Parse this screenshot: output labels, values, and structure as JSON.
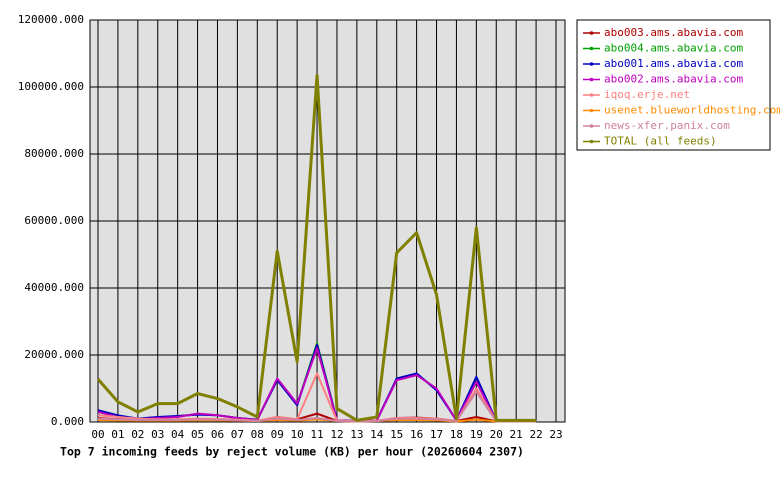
{
  "chart_data": {
    "type": "line",
    "title": "Top 7 incoming feeds by reject volume (KB) per hour (20260604 2307)",
    "categories": [
      "00",
      "01",
      "02",
      "03",
      "04",
      "05",
      "06",
      "07",
      "08",
      "09",
      "10",
      "11",
      "12",
      "13",
      "14",
      "15",
      "16",
      "17",
      "18",
      "19",
      "20",
      "21",
      "22",
      "23"
    ],
    "ylim": [
      0,
      120000
    ],
    "yticks": [
      {
        "value": 0,
        "label": "0.000"
      },
      {
        "value": 20000,
        "label": "20000.000"
      },
      {
        "value": 40000,
        "label": "40000.000"
      },
      {
        "value": 60000,
        "label": "60000.000"
      },
      {
        "value": 80000,
        "label": "80000.000"
      },
      {
        "value": 100000,
        "label": "100000.000"
      },
      {
        "value": 120000,
        "label": "120000.000"
      }
    ],
    "grid": true,
    "legend": "outside-right",
    "series": [
      {
        "name": "abo003.ams.abavia.com",
        "color": "#b00000",
        "values": [
          1200,
          800,
          500,
          600,
          700,
          900,
          800,
          500,
          300,
          1500,
          800,
          2500,
          300,
          200,
          300,
          1200,
          1300,
          1000,
          300,
          1500,
          200,
          200,
          200,
          null
        ]
      },
      {
        "name": "abo004.ams.abavia.com",
        "color": "#00a000",
        "values": [
          3300,
          1800,
          900,
          1400,
          1700,
          2300,
          2000,
          1200,
          700,
          12800,
          5200,
          23500,
          500,
          300,
          500,
          12800,
          14300,
          9800,
          500,
          13200,
          300,
          300,
          300,
          null
        ]
      },
      {
        "name": "abo001.ams.abavia.com",
        "color": "#0000c0",
        "values": [
          3500,
          2000,
          1000,
          1500,
          1800,
          2200,
          2000,
          1200,
          700,
          12500,
          5000,
          23000,
          500,
          300,
          500,
          13000,
          14500,
          9500,
          500,
          13500,
          300,
          300,
          300,
          null
        ]
      },
      {
        "name": "abo002.ams.abavia.com",
        "color": "#c000c0",
        "values": [
          3000,
          1500,
          800,
          1200,
          1500,
          2500,
          2000,
          1200,
          600,
          13000,
          5500,
          22000,
          500,
          300,
          500,
          12500,
          14000,
          10000,
          500,
          12000,
          300,
          300,
          300,
          null
        ]
      },
      {
        "name": "iqoq.erje.net",
        "color": "#ff8080",
        "values": [
          2000,
          1500,
          1000,
          800,
          800,
          1000,
          900,
          700,
          400,
          1500,
          800,
          14500,
          400,
          200,
          400,
          1200,
          1200,
          1000,
          300,
          10000,
          300,
          300,
          300,
          null
        ]
      },
      {
        "name": "usenet.blueworldhosting.com",
        "color": "#ff8c00",
        "values": [
          600,
          500,
          400,
          400,
          400,
          500,
          500,
          400,
          300,
          600,
          400,
          800,
          300,
          200,
          300,
          600,
          600,
          500,
          200,
          700,
          200,
          200,
          200,
          null
        ]
      },
      {
        "name": "news-xfer.panix.com",
        "color": "#d080a0",
        "values": [
          1000,
          800,
          600,
          600,
          600,
          800,
          700,
          500,
          300,
          1000,
          600,
          1200,
          300,
          200,
          300,
          1000,
          1000,
          800,
          300,
          9000,
          200,
          200,
          200,
          null
        ]
      },
      {
        "name": "TOTAL (all feeds)",
        "color": "#808000",
        "values": [
          12800,
          6000,
          3000,
          5500,
          5500,
          8500,
          7000,
          4500,
          1500,
          51000,
          18000,
          103500,
          4000,
          500,
          1500,
          50500,
          56500,
          38000,
          1000,
          58000,
          500,
          500,
          500,
          null
        ]
      }
    ]
  }
}
